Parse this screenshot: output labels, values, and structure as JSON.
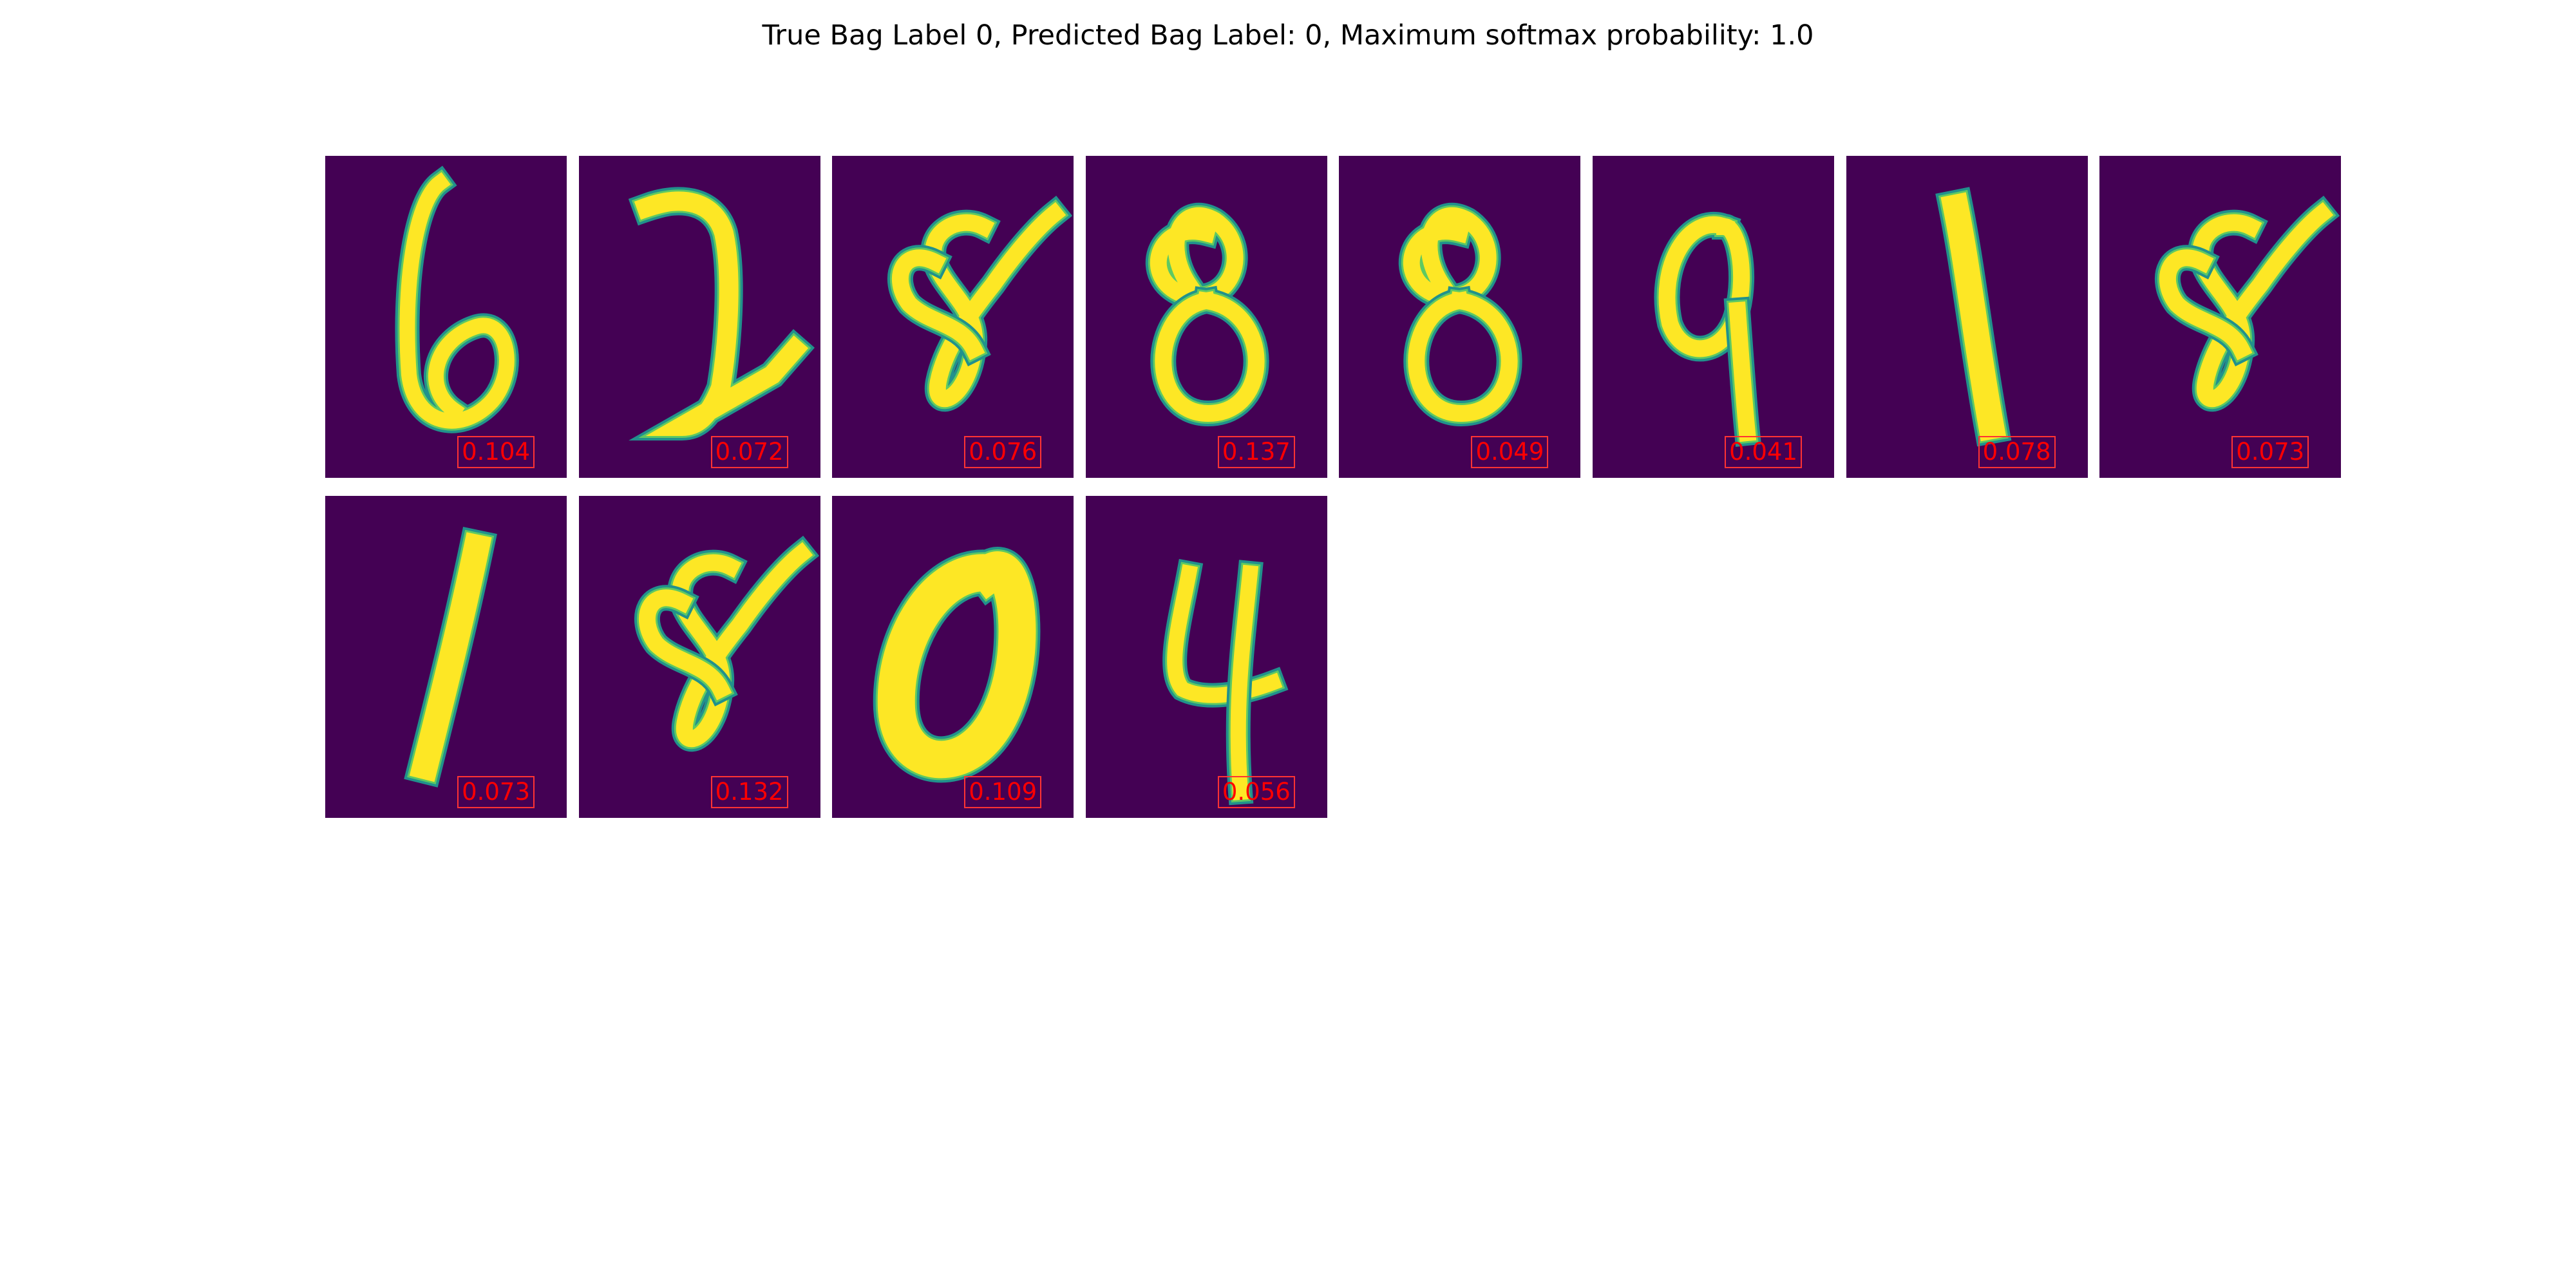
{
  "figure": {
    "title": "True Bag Label 0, Predicted Bag Label: 0, Maximum softmax probability: 1.0"
  },
  "colors": {
    "background": "#440154",
    "stroke_core": "#fde725",
    "stroke_edge": "#21918c",
    "stroke_mid": "#5ec962",
    "score_text": "#ff0000",
    "score_border": "#ff3333"
  },
  "tiles": [
    {
      "digit": "6",
      "score": "0.104"
    },
    {
      "digit": "2",
      "score": "0.072"
    },
    {
      "digit": "8",
      "score": "0.076"
    },
    {
      "digit": "8",
      "score": "0.137"
    },
    {
      "digit": "8",
      "score": "0.049"
    },
    {
      "digit": "9",
      "score": "0.041"
    },
    {
      "digit": "1",
      "score": "0.078"
    },
    {
      "digit": "8",
      "score": "0.073"
    },
    {
      "digit": "1",
      "score": "0.073"
    },
    {
      "digit": "8",
      "score": "0.132"
    },
    {
      "digit": "0",
      "score": "0.109"
    },
    {
      "digit": "4",
      "score": "0.056"
    }
  ]
}
